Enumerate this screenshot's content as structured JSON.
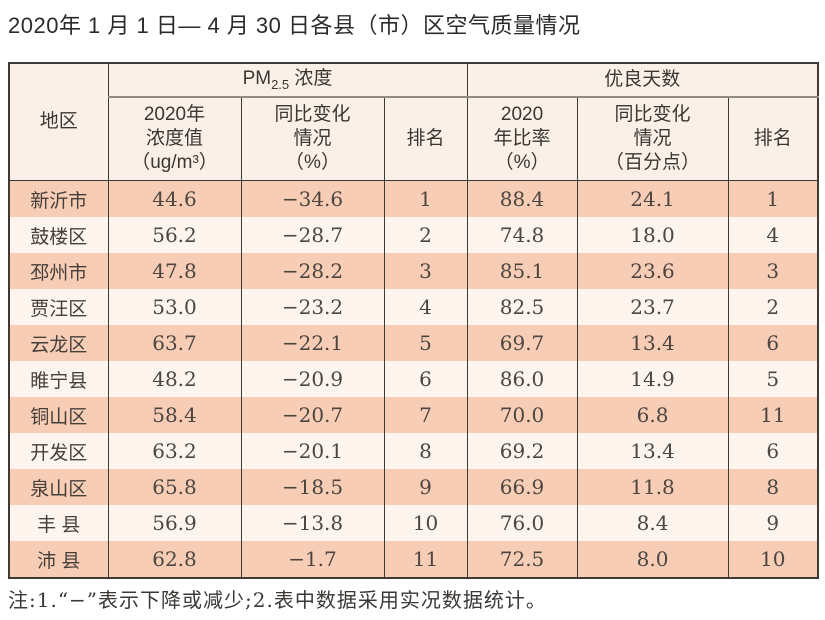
{
  "title": "2020年 1 月 1 日— 4 月 30 日各县（市）区空气质量情况",
  "table": {
    "header": {
      "region": "地区",
      "pm25_group": {
        "prefix": "PM",
        "sub": "2.5",
        "suffix": " 浓度"
      },
      "good_days_group": "优良天数",
      "pm_value": "2020年\n浓度值\n（ug/m³）",
      "pm_change": "同比变化\n情况\n（%）",
      "pm_rank": "排名",
      "gd_ratio": "2020\n年比率\n（%）",
      "gd_change": "同比变化\n情况\n（百分点）",
      "gd_rank": "排名"
    },
    "rows": [
      {
        "region": "新沂市",
        "pm_value": "44.6",
        "pm_change": "−34.6",
        "pm_rank": "1",
        "gd_ratio": "88.4",
        "gd_change": "24.1",
        "gd_rank": "1"
      },
      {
        "region": "鼓楼区",
        "pm_value": "56.2",
        "pm_change": "−28.7",
        "pm_rank": "2",
        "gd_ratio": "74.8",
        "gd_change": "18.0",
        "gd_rank": "4"
      },
      {
        "region": "邳州市",
        "pm_value": "47.8",
        "pm_change": "−28.2",
        "pm_rank": "3",
        "gd_ratio": "85.1",
        "gd_change": "23.6",
        "gd_rank": "3"
      },
      {
        "region": "贾汪区",
        "pm_value": "53.0",
        "pm_change": "−23.2",
        "pm_rank": "4",
        "gd_ratio": "82.5",
        "gd_change": "23.7",
        "gd_rank": "2"
      },
      {
        "region": "云龙区",
        "pm_value": "63.7",
        "pm_change": "−22.1",
        "pm_rank": "5",
        "gd_ratio": "69.7",
        "gd_change": "13.4",
        "gd_rank": "6"
      },
      {
        "region": "睢宁县",
        "pm_value": "48.2",
        "pm_change": "−20.9",
        "pm_rank": "6",
        "gd_ratio": "86.0",
        "gd_change": "14.9",
        "gd_rank": "5"
      },
      {
        "region": "铜山区",
        "pm_value": "58.4",
        "pm_change": "−20.7",
        "pm_rank": "7",
        "gd_ratio": "70.0",
        "gd_change": "6.8",
        "gd_rank": "11"
      },
      {
        "region": "开发区",
        "pm_value": "63.2",
        "pm_change": "−20.1",
        "pm_rank": "8",
        "gd_ratio": "69.2",
        "gd_change": "13.4",
        "gd_rank": "6"
      },
      {
        "region": "泉山区",
        "pm_value": "65.8",
        "pm_change": "−18.5",
        "pm_rank": "9",
        "gd_ratio": "66.9",
        "gd_change": "11.8",
        "gd_rank": "8"
      },
      {
        "region": "丰 县",
        "pm_value": "56.9",
        "pm_change": "−13.8",
        "pm_rank": "10",
        "gd_ratio": "76.0",
        "gd_change": "8.4",
        "gd_rank": "9"
      },
      {
        "region": "沛 县",
        "pm_value": "62.8",
        "pm_change": "−1.7",
        "pm_rank": "11",
        "gd_ratio": "72.5",
        "gd_change": "8.0",
        "gd_rank": "10"
      }
    ]
  },
  "footnote": "注:1.“−”表示下降或减少;2.表中数据采用实况数据统计。",
  "colors": {
    "row_shaded": "#f8cdb6",
    "row_plain": "#fdf4ee",
    "header_bg": "#fbf0e8",
    "border": "#3e3a36"
  }
}
